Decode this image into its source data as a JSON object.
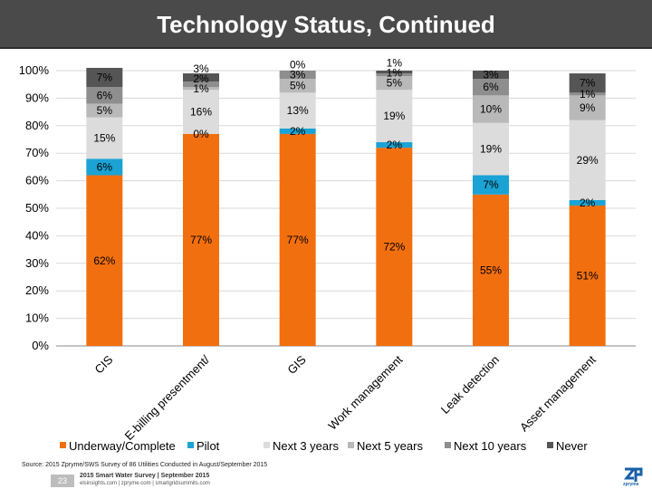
{
  "title": "Technology Status, Continued",
  "source": "Source: 2015 Zpryme/SWS Survey of 86 Utilities Conducted in August/September 2015",
  "footer": {
    "page": "23",
    "survey": "2015 Smart Water Survey | September 2015",
    "links": "elsinsights.com | zpryme.com | smartgridsummits.com",
    "logo_text": "zpryme"
  },
  "chart_data": {
    "type": "bar",
    "stacked": true,
    "title": "",
    "xlabel": "",
    "ylabel": "",
    "ylim": [
      0,
      100
    ],
    "yticks": [
      "0%",
      "10%",
      "20%",
      "30%",
      "40%",
      "50%",
      "60%",
      "70%",
      "80%",
      "90%",
      "100%"
    ],
    "categories": [
      "CIS",
      "E-billing presentment/",
      "GIS",
      "Work management",
      "Leak detection",
      "Asset management"
    ],
    "series": [
      {
        "name": "Underway/Complete",
        "color": "#f26f0f",
        "values": [
          62,
          77,
          77,
          72,
          55,
          51
        ],
        "labels": [
          "62%",
          "77%",
          "77%",
          "72%",
          "55%",
          "51%"
        ]
      },
      {
        "name": "Pilot",
        "color": "#1aa3d4",
        "values": [
          6,
          0,
          2,
          2,
          7,
          2
        ],
        "labels": [
          "6%",
          "0%",
          "2%",
          "2%",
          "7%",
          "2%"
        ]
      },
      {
        "name": "Next 3 years",
        "color": "#dcdcdc",
        "values": [
          15,
          16,
          13,
          19,
          19,
          29
        ],
        "labels": [
          "15%",
          "16%",
          "13%",
          "19%",
          "19%",
          "29%"
        ]
      },
      {
        "name": "Next 5 years",
        "color": "#b9b9b9",
        "values": [
          5,
          1,
          5,
          5,
          10,
          9
        ],
        "labels": [
          "5%",
          "1%",
          "5%",
          "5%",
          "10%",
          "9%"
        ]
      },
      {
        "name": "Next 10 years",
        "color": "#8e8e8e",
        "values": [
          6,
          2,
          3,
          1,
          6,
          1
        ],
        "labels": [
          "6%",
          "2%",
          "3%",
          "1%",
          "6%",
          "1%"
        ]
      },
      {
        "name": "Never",
        "color": "#555555",
        "values": [
          7,
          3,
          0,
          1,
          3,
          7
        ],
        "labels": [
          "7%",
          "3%",
          "0%",
          "1%",
          "3%",
          "7%"
        ]
      }
    ],
    "legend_position": "bottom"
  }
}
